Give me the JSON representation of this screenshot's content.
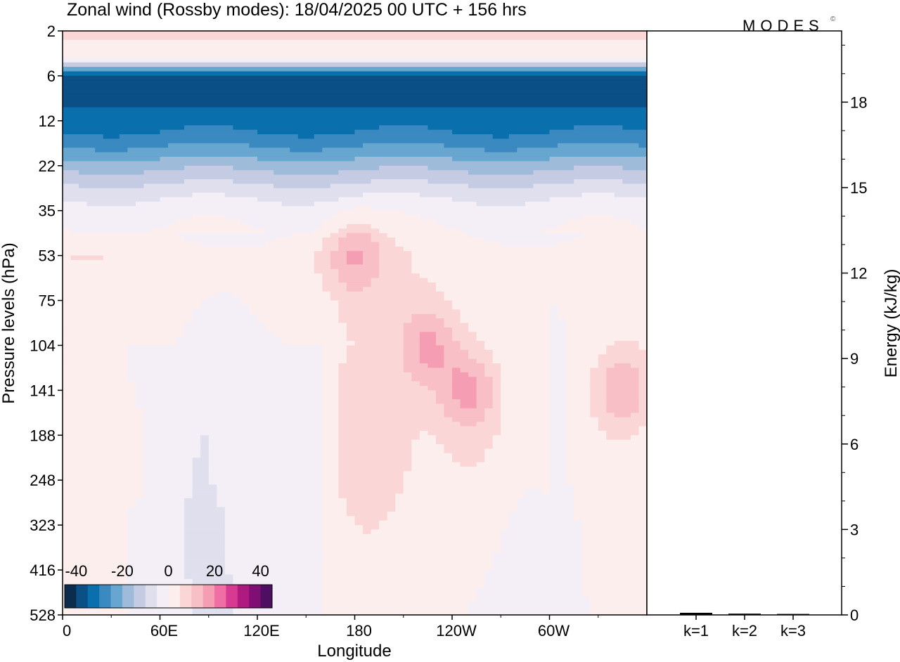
{
  "title": "Zonal wind (Rossby modes):  18/04/2025  00 UTC  + 156 hrs",
  "logo": {
    "text": "MODES",
    "mark": "©"
  },
  "colors": {
    "negative": [
      "#0c2c4e",
      "#0b4f87",
      "#0a6fad",
      "#3a89c0",
      "#66a6cf",
      "#9ebcda",
      "#c5cbe3",
      "#e0dfee",
      "#f4eef6"
    ],
    "positive": [
      "#fdeeee",
      "#fbd6d6",
      "#f8bfc6",
      "#f59eb3",
      "#ef6ea3",
      "#d93a91",
      "#ae1a7d",
      "#7f0f73",
      "#4e0f62"
    ]
  },
  "chart_data": [
    {
      "type": "heatmap",
      "title": "Zonal wind (Rossby modes):  18/04/2025  00 UTC  + 156 hrs",
      "xlabel": "Longitude",
      "ylabel": "Pressure levels (hPa)",
      "x_ticks": [
        "0",
        "60E",
        "120E",
        "180",
        "120W",
        "60W"
      ],
      "x_range_deg": [
        0,
        360
      ],
      "y_ticks": [
        "2",
        "6",
        "12",
        "22",
        "35",
        "53",
        "75",
        "104",
        "141",
        "188",
        "248",
        "323",
        "416",
        "528"
      ],
      "y_scale": "model levels (top 2 hPa, bottom 528 hPa)",
      "colorbar": {
        "ticks": [
          "-40",
          "-20",
          "0",
          "20",
          "40"
        ],
        "range": [
          -45,
          45
        ],
        "step": 5,
        "placement": "bottom-left"
      },
      "zonal_mean_profile": [
        {
          "level": "2",
          "value": 7
        },
        {
          "level": "4",
          "value": 0
        },
        {
          "level": "6",
          "value": -38
        },
        {
          "level": "9",
          "value": -36
        },
        {
          "level": "12",
          "value": -33
        },
        {
          "level": "16",
          "value": -27
        },
        {
          "level": "22",
          "value": -17
        },
        {
          "level": "28",
          "value": -8
        },
        {
          "level": "35",
          "value": -2
        },
        {
          "level": "53",
          "value": 3
        },
        {
          "level": "75",
          "value": 2
        },
        {
          "level": "104",
          "value": 1
        },
        {
          "level": "141",
          "value": 1
        },
        {
          "level": "188",
          "value": 1
        },
        {
          "level": "248",
          "value": 1
        },
        {
          "level": "323",
          "value": 0
        },
        {
          "level": "416",
          "value": 0
        },
        {
          "level": "528",
          "value": 0
        }
      ],
      "regional_maxima": [
        {
          "lon": 180,
          "level": "53",
          "value": 15
        },
        {
          "lon": 225,
          "level": "104",
          "value": 15
        },
        {
          "lon": 250,
          "level": "141",
          "value": 15
        },
        {
          "lon": 345,
          "level": "141",
          "value": 15
        },
        {
          "lon": 315,
          "level": "6",
          "value": -40
        }
      ]
    },
    {
      "type": "bar",
      "categories": [
        "k=1",
        "k=2",
        "k=3"
      ],
      "values": [
        0.05,
        0.02,
        0.01
      ],
      "ylabel": "Energy (kJ/kg)",
      "ylim": [
        0,
        20.5
      ],
      "y_ticks": [
        0,
        3,
        6,
        9,
        12,
        15,
        18
      ]
    }
  ]
}
